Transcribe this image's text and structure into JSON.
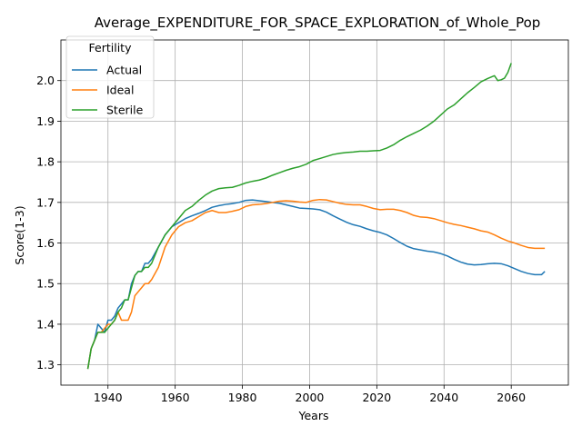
{
  "chart_data": {
    "type": "line",
    "title": "Average_EXPENDITURE_FOR_SPACE_EXPLORATION_of_Whole_Pop",
    "xlabel": "Years",
    "ylabel": "Score(1-3)",
    "xlim": [
      1926,
      2077
    ],
    "ylim": [
      1.25,
      2.1
    ],
    "xticks": [
      1940,
      1960,
      1980,
      2000,
      2020,
      2040,
      2060
    ],
    "yticks": [
      1.3,
      1.4,
      1.5,
      1.6,
      1.7,
      1.8,
      1.9,
      2.0
    ],
    "xtick_labels": [
      "1940",
      "1960",
      "1980",
      "2000",
      "2020",
      "2040",
      "2060"
    ],
    "ytick_labels": [
      "1.3",
      "1.4",
      "1.5",
      "1.6",
      "1.7",
      "1.8",
      "1.9",
      "2.0"
    ],
    "grid": true,
    "legend": {
      "title": "Fertility",
      "position": "top-left"
    },
    "series": [
      {
        "name": "Actual",
        "color": "#1f77b4",
        "points": [
          [
            1934,
            1.29
          ],
          [
            1935,
            1.34
          ],
          [
            1936,
            1.36
          ],
          [
            1937,
            1.4
          ],
          [
            1938,
            1.39
          ],
          [
            1939,
            1.38
          ],
          [
            1940,
            1.41
          ],
          [
            1941,
            1.41
          ],
          [
            1942,
            1.42
          ],
          [
            1943,
            1.44
          ],
          [
            1944,
            1.45
          ],
          [
            1945,
            1.46
          ],
          [
            1946,
            1.46
          ],
          [
            1947,
            1.5
          ],
          [
            1948,
            1.52
          ],
          [
            1949,
            1.53
          ],
          [
            1950,
            1.53
          ],
          [
            1951,
            1.55
          ],
          [
            1952,
            1.55
          ],
          [
            1953,
            1.56
          ],
          [
            1955,
            1.59
          ],
          [
            1957,
            1.62
          ],
          [
            1959,
            1.64
          ],
          [
            1961,
            1.65
          ],
          [
            1963,
            1.66
          ],
          [
            1965,
            1.667
          ],
          [
            1967,
            1.673
          ],
          [
            1969,
            1.68
          ],
          [
            1971,
            1.688
          ],
          [
            1973,
            1.692
          ],
          [
            1975,
            1.695
          ],
          [
            1977,
            1.697
          ],
          [
            1979,
            1.7
          ],
          [
            1981,
            1.705
          ],
          [
            1983,
            1.706
          ],
          [
            1985,
            1.704
          ],
          [
            1987,
            1.702
          ],
          [
            1989,
            1.7
          ],
          [
            1991,
            1.698
          ],
          [
            1993,
            1.694
          ],
          [
            1995,
            1.69
          ],
          [
            1997,
            1.686
          ],
          [
            1999,
            1.685
          ],
          [
            2001,
            1.684
          ],
          [
            2003,
            1.682
          ],
          [
            2005,
            1.676
          ],
          [
            2007,
            1.667
          ],
          [
            2009,
            1.659
          ],
          [
            2011,
            1.651
          ],
          [
            2013,
            1.645
          ],
          [
            2015,
            1.641
          ],
          [
            2017,
            1.635
          ],
          [
            2019,
            1.63
          ],
          [
            2021,
            1.626
          ],
          [
            2023,
            1.62
          ],
          [
            2025,
            1.611
          ],
          [
            2027,
            1.601
          ],
          [
            2029,
            1.592
          ],
          [
            2031,
            1.586
          ],
          [
            2033,
            1.583
          ],
          [
            2035,
            1.58
          ],
          [
            2037,
            1.578
          ],
          [
            2039,
            1.574
          ],
          [
            2041,
            1.568
          ],
          [
            2043,
            1.56
          ],
          [
            2045,
            1.553
          ],
          [
            2047,
            1.548
          ],
          [
            2049,
            1.546
          ],
          [
            2051,
            1.547
          ],
          [
            2053,
            1.549
          ],
          [
            2055,
            1.55
          ],
          [
            2057,
            1.549
          ],
          [
            2059,
            1.544
          ],
          [
            2061,
            1.537
          ],
          [
            2063,
            1.53
          ],
          [
            2065,
            1.525
          ],
          [
            2067,
            1.522
          ],
          [
            2069,
            1.522
          ],
          [
            2070,
            1.53
          ]
        ]
      },
      {
        "name": "Ideal",
        "color": "#ff7f0e",
        "points": [
          [
            1934,
            1.29
          ],
          [
            1935,
            1.34
          ],
          [
            1936,
            1.36
          ],
          [
            1937,
            1.38
          ],
          [
            1938,
            1.38
          ],
          [
            1939,
            1.39
          ],
          [
            1940,
            1.4
          ],
          [
            1941,
            1.4
          ],
          [
            1942,
            1.41
          ],
          [
            1943,
            1.43
          ],
          [
            1944,
            1.41
          ],
          [
            1945,
            1.41
          ],
          [
            1946,
            1.41
          ],
          [
            1947,
            1.43
          ],
          [
            1948,
            1.47
          ],
          [
            1949,
            1.48
          ],
          [
            1950,
            1.49
          ],
          [
            1951,
            1.5
          ],
          [
            1952,
            1.5
          ],
          [
            1953,
            1.51
          ],
          [
            1955,
            1.54
          ],
          [
            1957,
            1.59
          ],
          [
            1959,
            1.62
          ],
          [
            1961,
            1.64
          ],
          [
            1963,
            1.65
          ],
          [
            1965,
            1.655
          ],
          [
            1967,
            1.665
          ],
          [
            1969,
            1.675
          ],
          [
            1971,
            1.68
          ],
          [
            1973,
            1.675
          ],
          [
            1975,
            1.675
          ],
          [
            1977,
            1.678
          ],
          [
            1979,
            1.682
          ],
          [
            1981,
            1.69
          ],
          [
            1983,
            1.694
          ],
          [
            1985,
            1.695
          ],
          [
            1987,
            1.697
          ],
          [
            1989,
            1.7
          ],
          [
            1991,
            1.703
          ],
          [
            1993,
            1.704
          ],
          [
            1995,
            1.703
          ],
          [
            1997,
            1.701
          ],
          [
            1999,
            1.7
          ],
          [
            2001,
            1.705
          ],
          [
            2003,
            1.707
          ],
          [
            2005,
            1.706
          ],
          [
            2007,
            1.702
          ],
          [
            2009,
            1.698
          ],
          [
            2011,
            1.695
          ],
          [
            2013,
            1.694
          ],
          [
            2015,
            1.694
          ],
          [
            2017,
            1.69
          ],
          [
            2019,
            1.685
          ],
          [
            2021,
            1.682
          ],
          [
            2023,
            1.683
          ],
          [
            2025,
            1.683
          ],
          [
            2027,
            1.68
          ],
          [
            2029,
            1.675
          ],
          [
            2031,
            1.668
          ],
          [
            2033,
            1.664
          ],
          [
            2035,
            1.663
          ],
          [
            2037,
            1.66
          ],
          [
            2039,
            1.655
          ],
          [
            2041,
            1.65
          ],
          [
            2043,
            1.646
          ],
          [
            2045,
            1.643
          ],
          [
            2047,
            1.639
          ],
          [
            2049,
            1.635
          ],
          [
            2051,
            1.63
          ],
          [
            2053,
            1.627
          ],
          [
            2055,
            1.62
          ],
          [
            2057,
            1.612
          ],
          [
            2059,
            1.605
          ],
          [
            2061,
            1.6
          ],
          [
            2063,
            1.594
          ],
          [
            2065,
            1.589
          ],
          [
            2067,
            1.587
          ],
          [
            2069,
            1.587
          ],
          [
            2070,
            1.587
          ]
        ]
      },
      {
        "name": "Sterile",
        "color": "#2ca02c",
        "points": [
          [
            1934,
            1.29
          ],
          [
            1935,
            1.34
          ],
          [
            1936,
            1.36
          ],
          [
            1937,
            1.38
          ],
          [
            1938,
            1.38
          ],
          [
            1939,
            1.38
          ],
          [
            1940,
            1.39
          ],
          [
            1941,
            1.4
          ],
          [
            1942,
            1.41
          ],
          [
            1943,
            1.43
          ],
          [
            1944,
            1.44
          ],
          [
            1945,
            1.46
          ],
          [
            1946,
            1.46
          ],
          [
            1947,
            1.49
          ],
          [
            1948,
            1.52
          ],
          [
            1949,
            1.53
          ],
          [
            1950,
            1.53
          ],
          [
            1951,
            1.54
          ],
          [
            1952,
            1.54
          ],
          [
            1953,
            1.55
          ],
          [
            1955,
            1.59
          ],
          [
            1957,
            1.62
          ],
          [
            1959,
            1.64
          ],
          [
            1961,
            1.66
          ],
          [
            1963,
            1.68
          ],
          [
            1965,
            1.69
          ],
          [
            1967,
            1.705
          ],
          [
            1969,
            1.718
          ],
          [
            1971,
            1.728
          ],
          [
            1973,
            1.734
          ],
          [
            1975,
            1.736
          ],
          [
            1977,
            1.737
          ],
          [
            1979,
            1.742
          ],
          [
            1981,
            1.748
          ],
          [
            1983,
            1.752
          ],
          [
            1985,
            1.755
          ],
          [
            1987,
            1.76
          ],
          [
            1989,
            1.767
          ],
          [
            1991,
            1.773
          ],
          [
            1993,
            1.779
          ],
          [
            1995,
            1.784
          ],
          [
            1997,
            1.788
          ],
          [
            1999,
            1.794
          ],
          [
            2001,
            1.803
          ],
          [
            2003,
            1.808
          ],
          [
            2005,
            1.813
          ],
          [
            2007,
            1.818
          ],
          [
            2009,
            1.821
          ],
          [
            2011,
            1.823
          ],
          [
            2013,
            1.824
          ],
          [
            2015,
            1.826
          ],
          [
            2017,
            1.826
          ],
          [
            2019,
            1.827
          ],
          [
            2021,
            1.828
          ],
          [
            2023,
            1.834
          ],
          [
            2025,
            1.842
          ],
          [
            2027,
            1.853
          ],
          [
            2029,
            1.862
          ],
          [
            2031,
            1.87
          ],
          [
            2033,
            1.878
          ],
          [
            2035,
            1.888
          ],
          [
            2037,
            1.9
          ],
          [
            2039,
            1.915
          ],
          [
            2041,
            1.93
          ],
          [
            2043,
            1.94
          ],
          [
            2045,
            1.955
          ],
          [
            2047,
            1.97
          ],
          [
            2049,
            1.983
          ],
          [
            2051,
            1.997
          ],
          [
            2053,
            2.005
          ],
          [
            2055,
            2.012
          ],
          [
            2056,
            2.0
          ],
          [
            2057,
            2.002
          ],
          [
            2058,
            2.006
          ],
          [
            2059,
            2.02
          ],
          [
            2060,
            2.043
          ]
        ]
      }
    ]
  }
}
